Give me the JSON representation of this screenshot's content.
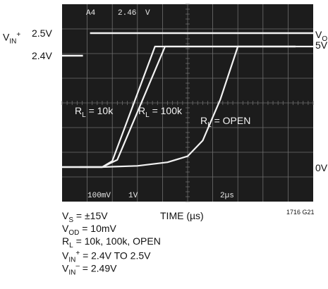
{
  "chart_data": {
    "type": "line",
    "xlabel": "TIME (µs)",
    "screen_labels": {
      "top_left": "A4",
      "top_value": "2.46",
      "top_unit": "V",
      "scale_v": "100mV",
      "scale_1": "1V",
      "scale_t": "2µs"
    },
    "input_axis": {
      "label_main": "V",
      "label_sub": "IN",
      "label_sup": "+",
      "high": "2.5V",
      "low": "2.4V"
    },
    "output_axis": {
      "label_main": "V",
      "label_sub": "O",
      "high": "5V",
      "low": "0V"
    },
    "grid": true,
    "x_div_time_us": 2,
    "series": [
      {
        "name_main": "R",
        "name_sub": "L",
        "name_value": " = 10k",
        "x": [
          0,
          1.6,
          2.0,
          3.7,
          5.0,
          7.0,
          9.3
        ],
        "y": [
          0,
          0,
          0.25,
          5,
          5,
          5,
          5
        ]
      },
      {
        "name_main": "R",
        "name_sub": "L",
        "name_value": " = 100k",
        "x": [
          0,
          1.6,
          2.2,
          4.1,
          5.0,
          7.0,
          9.3
        ],
        "y": [
          0,
          0,
          0.3,
          5,
          5,
          5,
          5
        ]
      },
      {
        "name_main": "R",
        "name_sub": "L",
        "name_value": " = OPEN",
        "x": [
          0,
          1.6,
          3.0,
          4.2,
          5.0,
          5.6,
          6.3,
          7.0,
          8.0,
          9.3
        ],
        "y": [
          0,
          0,
          0.05,
          0.2,
          0.45,
          1.1,
          2.8,
          5,
          5,
          5
        ]
      }
    ],
    "input_step": {
      "x": [
        0,
        1.0,
        1.0,
        9.3
      ],
      "y": [
        "2.4V",
        "2.4V",
        "2.5V",
        "2.5V"
      ]
    }
  },
  "conditions": {
    "vs": {
      "main": "V",
      "sub": "S",
      "value": " = ±15V"
    },
    "vod": {
      "main": "V",
      "sub": "OD",
      "value": " = 10mV"
    },
    "rl": {
      "main": "R",
      "sub": "L",
      "value": " = 10k, 100k, OPEN"
    },
    "vinp": {
      "main": "V",
      "sub": "IN",
      "sup": "+",
      "value": " = 2.4V TO 2.5V"
    },
    "vinm": {
      "main": "V",
      "sub": "IN",
      "sup": "–",
      "value": " = 2.49V"
    }
  },
  "figure_id": "1716 G21",
  "colors": {
    "screen": "#1c1c1c",
    "trace": "#f2f2f2",
    "grid": "#6e6e6e"
  }
}
